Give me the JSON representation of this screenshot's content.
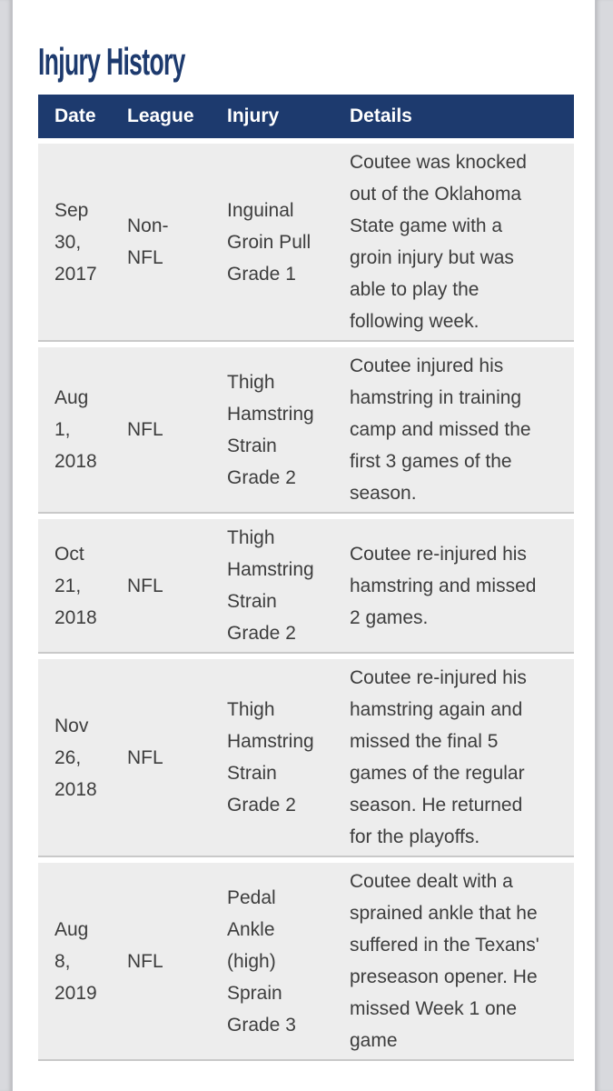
{
  "page": {
    "title": "Injury History"
  },
  "table": {
    "headers": [
      "Date",
      "League",
      "Injury",
      "Details"
    ],
    "rows": [
      {
        "date": "Sep 30, 2017",
        "league": "Non-NFL",
        "injury": "Inguinal Groin Pull Grade 1",
        "details": "Coutee was knocked out of the Oklahoma State game with a groin injury but was able to play the following week."
      },
      {
        "date": "Aug 1, 2018",
        "league": "NFL",
        "injury": "Thigh Hamstring Strain Grade 2",
        "details": "Coutee injured his hamstring in training camp and missed the first 3 games of the season."
      },
      {
        "date": "Oct 21, 2018",
        "league": "NFL",
        "injury": "Thigh Hamstring Strain Grade 2",
        "details": "Coutee re-injured his hamstring and missed 2 games."
      },
      {
        "date": "Nov 26, 2018",
        "league": "NFL",
        "injury": "Thigh Hamstring Strain Grade 2",
        "details": "Coutee re-injured his hamstring again and missed the final 5 games of the regular season. He returned for the playoffs."
      },
      {
        "date": "Aug 8, 2019",
        "league": "NFL",
        "injury": "Pedal Ankle (high) Sprain Grade 3",
        "details": "Coutee dealt with a sprained ankle that he suffered in the Texans' preseason opener. He missed Week 1 one game"
      }
    ]
  },
  "colors": {
    "navy": "#1d3a6e",
    "header-text": "#ffffff",
    "row-bg": "#ededed",
    "row-border": "#c9c9c9",
    "cell-text": "#3d3d3d",
    "page-bg": "#ffffff",
    "margin-strip": "#d8d9dd"
  }
}
